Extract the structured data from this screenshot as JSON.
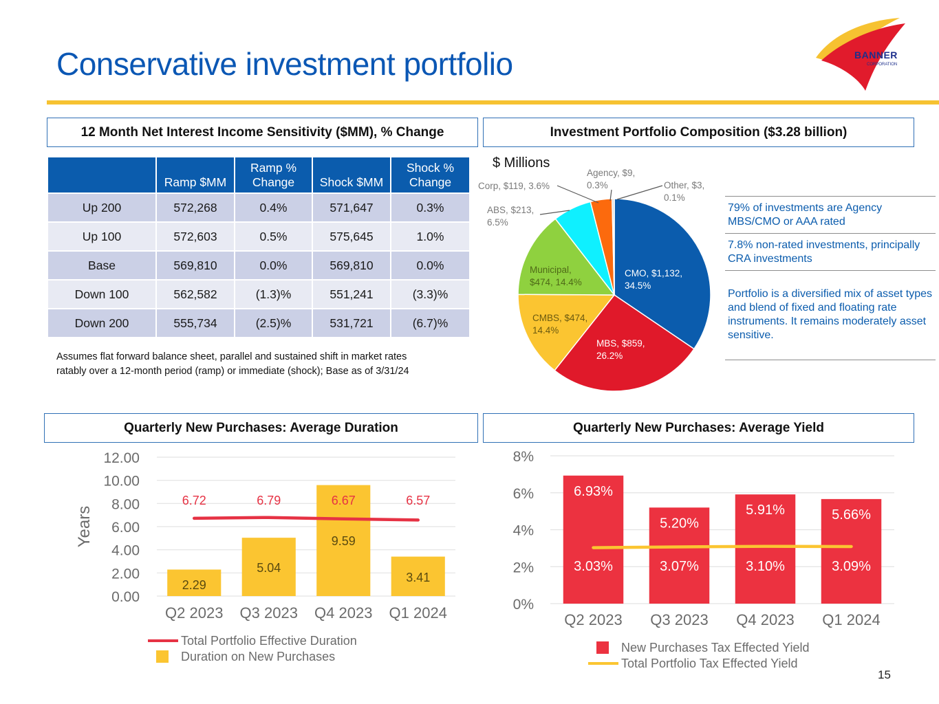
{
  "slide": {
    "title": "Conservative investment portfolio",
    "page_number": "15",
    "logo": {
      "name": "BANNER",
      "sub": "CORPORATION"
    },
    "colors": {
      "title_blue": "#0b57b4",
      "gold": "#f6c231",
      "table_header": "#0b5cad",
      "row_dark": "#cbd0e6",
      "row_light": "#e8eaf3",
      "bullet_text": "#0b5cad"
    }
  },
  "sections": {
    "nii": "12 Month Net Interest Income Sensitivity ($MM), % Change",
    "composition": "Investment Portfolio Composition ($3.28 billion)",
    "duration": "Quarterly New Purchases: Average Duration",
    "yield": "Quarterly New Purchases: Average Yield"
  },
  "nii_table": {
    "headers": [
      "",
      "Ramp $MM",
      "Ramp %\nChange",
      "Shock $MM",
      "Shock %\nChange"
    ],
    "header_lines": [
      [
        "",
        ""
      ],
      [
        "",
        "Ramp $MM"
      ],
      [
        "Ramp %",
        "Change"
      ],
      [
        "",
        "Shock $MM"
      ],
      [
        "Shock %",
        "Change"
      ]
    ],
    "rows": [
      [
        "Up 200",
        "572,268",
        "0.4%",
        "571,647",
        "0.3%"
      ],
      [
        "Up 100",
        "572,603",
        "0.5%",
        "575,645",
        "1.0%"
      ],
      [
        "Base",
        "569,810",
        "0.0%",
        "569,810",
        "0.0%"
      ],
      [
        "Down 100",
        "562,582",
        "(1.3)%",
        "551,241",
        "(3.3)%"
      ],
      [
        "Down 200",
        "555,734",
        "(2.5)%",
        "531,721",
        "(6.7)%"
      ]
    ],
    "footnote_lines": [
      "Assumes flat forward balance sheet, parallel and sustained shift in market rates",
      "ratably over a 12-month period (ramp) or immediate (shock); Base as of 3/31/24"
    ]
  },
  "bullets": [
    "79% of investments are Agency MBS/CMO or AAA rated",
    "7.8% non-rated investments, principally CRA investments",
    "Portfolio is a diversified mix of asset types and blend of fixed and floating rate instruments. It remains moderately asset sensitive."
  ],
  "chart_data": [
    {
      "type": "pie",
      "title": "Investment Portfolio Composition ($3.28 billion)",
      "unit_label": "$ Millions",
      "slices": [
        {
          "label": "CMO",
          "value": 1132,
          "pct": 34.5,
          "text": [
            "CMO, $1,132,",
            "34.5%"
          ],
          "color": "#0b5cad"
        },
        {
          "label": "MBS",
          "value": 859,
          "pct": 26.2,
          "text": [
            "MBS, $859,",
            "26.2%"
          ],
          "color": "#e0192a"
        },
        {
          "label": "CMBS",
          "value": 474,
          "pct": 14.4,
          "text": [
            "CMBS, $474,",
            "14.4%"
          ],
          "color": "#fbc531"
        },
        {
          "label": "Municipal",
          "value": 474,
          "pct": 14.4,
          "text": [
            "Municipal,",
            "$474, 14.4%"
          ],
          "color": "#8fd13f"
        },
        {
          "label": "ABS",
          "value": 213,
          "pct": 6.5,
          "text": [
            "ABS, $213,",
            "6.5%"
          ],
          "color": "#0ff0ff"
        },
        {
          "label": "Corp",
          "value": 119,
          "pct": 3.6,
          "text": [
            "Corp, $119, 3.6%"
          ],
          "color": "#fc6a0d"
        },
        {
          "label": "Agency",
          "value": 9,
          "pct": 0.3,
          "text": [
            "Agency, $9,",
            "0.3%"
          ],
          "color": "#b4b4b4"
        },
        {
          "label": "Other",
          "value": 3,
          "pct": 0.1,
          "text": [
            "Other, $3,",
            "0.1%"
          ],
          "color": "#4a80c6"
        }
      ]
    },
    {
      "type": "bar",
      "title": "Quarterly New Purchases: Average Duration",
      "categories": [
        "Q2 2023",
        "Q3 2023",
        "Q4 2023",
        "Q1 2024"
      ],
      "ylabel": "Years",
      "ylim": [
        0,
        12
      ],
      "yticks": [
        "0.00",
        "2.00",
        "4.00",
        "6.00",
        "8.00",
        "10.00",
        "12.00"
      ],
      "grid": true,
      "legend": "bottom",
      "series": [
        {
          "name": "Duration on New Purchases",
          "kind": "bar",
          "color": "#fbc531",
          "values": [
            2.29,
            5.04,
            9.59,
            3.41
          ],
          "labels": [
            "2.29",
            "5.04",
            "9.59",
            "3.41"
          ]
        },
        {
          "name": "Total Portfolio Effective Duration",
          "kind": "line",
          "color": "#e63244",
          "values": [
            6.72,
            6.79,
            6.67,
            6.57
          ],
          "labels": [
            "6.72",
            "6.79",
            "6.67",
            "6.57"
          ]
        }
      ],
      "legend_order": [
        "Total Portfolio Effective Duration",
        "Duration on New Purchases"
      ]
    },
    {
      "type": "bar",
      "title": "Quarterly New Purchases: Average Yield",
      "categories": [
        "Q2 2023",
        "Q3 2023",
        "Q4 2023",
        "Q1 2024"
      ],
      "ylabel": "",
      "ylim": [
        0,
        8
      ],
      "yticks": [
        "0%",
        "2%",
        "4%",
        "6%",
        "8%"
      ],
      "grid": true,
      "legend": "bottom",
      "series": [
        {
          "name": "New Purchases Tax Effected Yield",
          "kind": "bar",
          "color": "#ec3240",
          "values": [
            6.93,
            5.2,
            5.91,
            5.66
          ],
          "labels": [
            "6.93%",
            "5.20%",
            "5.91%",
            "5.66%"
          ]
        },
        {
          "name": "Total Portfolio Tax Effected Yield",
          "kind": "line",
          "color": "#fbc531",
          "values": [
            3.03,
            3.07,
            3.1,
            3.09
          ],
          "labels": [
            "3.03%",
            "3.07%",
            "3.10%",
            "3.09%"
          ]
        }
      ],
      "legend_order": [
        "New Purchases Tax Effected Yield",
        "Total Portfolio Tax Effected Yield"
      ]
    }
  ]
}
